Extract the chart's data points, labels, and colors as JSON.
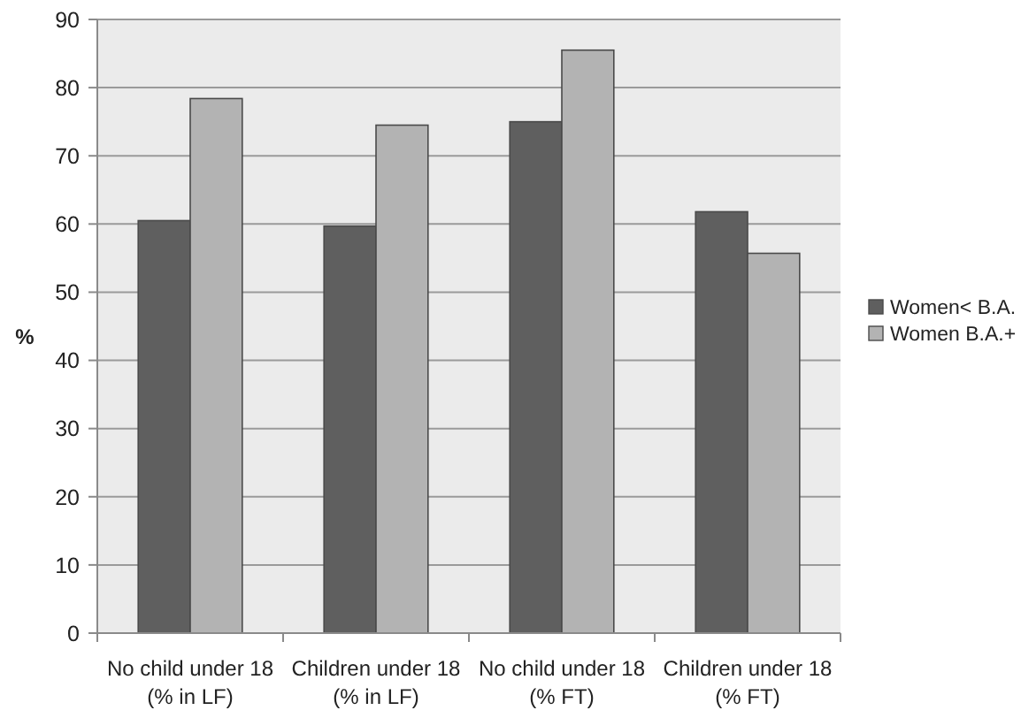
{
  "chart_data": {
    "type": "bar",
    "ylabel": "%",
    "categories": [
      "No child under 18\n(% in LF)",
      "Children under 18\n(% in LF)",
      "No child under 18\n(% FT)",
      "Children under 18\n(% FT)"
    ],
    "series": [
      {
        "name": "Women< B.A.",
        "color": "#5f5f5f",
        "values": [
          60.5,
          59.7,
          75,
          61.8
        ]
      },
      {
        "name": "Women B.A.+",
        "color": "#b3b3b3",
        "values": [
          78.4,
          74.5,
          85.5,
          55.7
        ]
      }
    ],
    "ylim": [
      0,
      90
    ],
    "yticks": [
      0,
      10,
      20,
      30,
      40,
      50,
      60,
      70,
      80,
      90
    ],
    "grid": "y",
    "legend": "right"
  }
}
